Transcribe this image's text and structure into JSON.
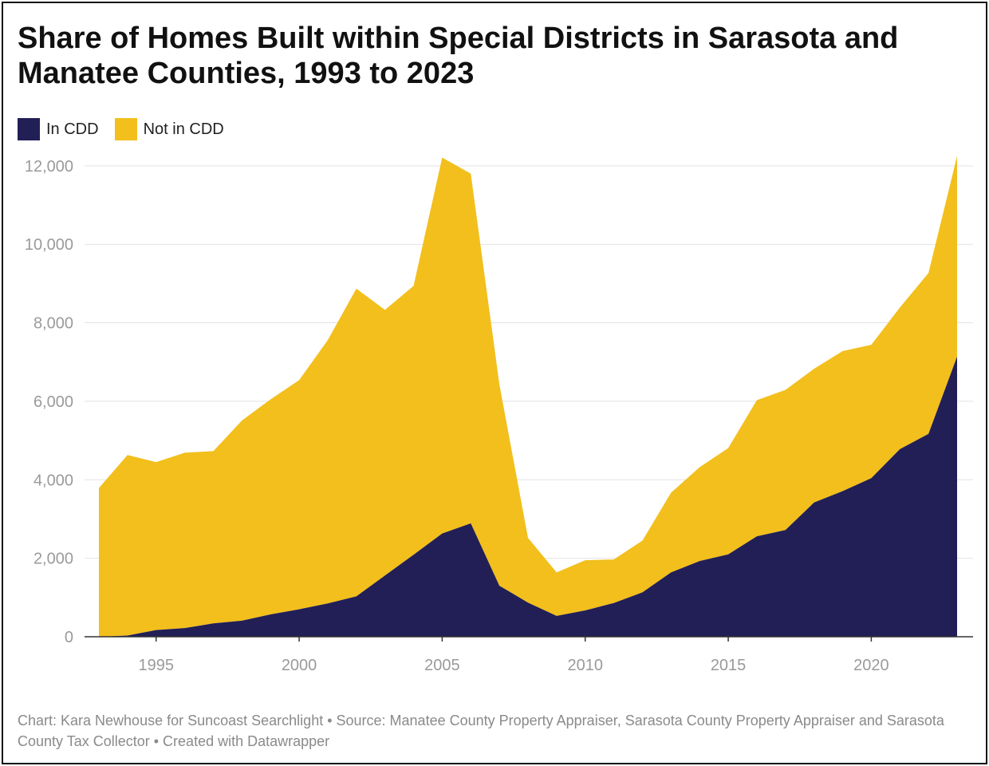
{
  "title": "Share of Homes Built within Special Districts in Sarasota and Manatee Counties, 1993 to 2023",
  "footer": "Chart: Kara Newhouse for Suncoast Searchlight • Source: Manatee County Property Appraiser, Sarasota County Property Appraiser and Sarasota County Tax Collector • Created with Datawrapper",
  "colors": {
    "in_cdd": "#221f57",
    "not_in_cdd": "#f2bf1c",
    "grid": "#e2e2e2",
    "tick_text": "#9a9a9a",
    "axis": "#333333"
  },
  "chart_data": {
    "type": "area",
    "stacked": true,
    "x": [
      1993,
      1994,
      1995,
      1996,
      1997,
      1998,
      1999,
      2000,
      2001,
      2002,
      2003,
      2004,
      2005,
      2006,
      2007,
      2008,
      2009,
      2010,
      2011,
      2012,
      2013,
      2014,
      2015,
      2016,
      2017,
      2018,
      2019,
      2020,
      2021,
      2022,
      2023
    ],
    "series": [
      {
        "name": "In CDD",
        "color": "#221f57",
        "values": [
          0,
          30,
          170,
          220,
          340,
          410,
          570,
          700,
          850,
          1030,
          1560,
          2090,
          2630,
          2890,
          1300,
          870,
          530,
          670,
          860,
          1130,
          1640,
          1930,
          2100,
          2560,
          2720,
          3420,
          3710,
          4040,
          4780,
          5170,
          7140
        ]
      },
      {
        "name": "Not in CDD",
        "color": "#f2bf1c",
        "values": [
          3790,
          4600,
          4280,
          4470,
          4390,
          5100,
          5480,
          5840,
          6710,
          7840,
          6770,
          6850,
          9580,
          8910,
          5130,
          1650,
          1110,
          1280,
          1110,
          1320,
          2030,
          2390,
          2710,
          3470,
          3570,
          3410,
          3570,
          3400,
          3610,
          4100,
          5110
        ]
      }
    ],
    "ylim": [
      0,
      12200
    ],
    "y_ticks": [
      0,
      2000,
      4000,
      6000,
      8000,
      10000,
      12000
    ],
    "y_tick_labels": [
      "0",
      "2,000",
      "4,000",
      "6,000",
      "8,000",
      "10,000",
      "12,000"
    ],
    "x_ticks": [
      1995,
      2000,
      2005,
      2010,
      2015,
      2020
    ],
    "x_tick_labels": [
      "1995",
      "2000",
      "2005",
      "2010",
      "2015",
      "2020"
    ],
    "grid": true,
    "legend_position": "top-left"
  }
}
